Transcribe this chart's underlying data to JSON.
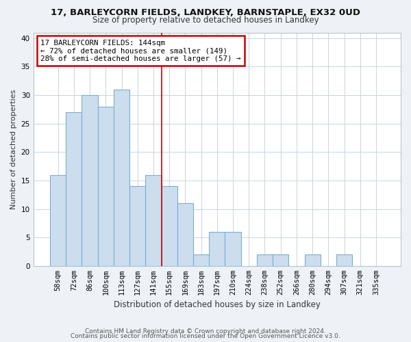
{
  "title1": "17, BARLEYCORN FIELDS, LANDKEY, BARNSTAPLE, EX32 0UD",
  "title2": "Size of property relative to detached houses in Landkey",
  "xlabel": "Distribution of detached houses by size in Landkey",
  "ylabel": "Number of detached properties",
  "categories": [
    "58sqm",
    "72sqm",
    "86sqm",
    "100sqm",
    "113sqm",
    "127sqm",
    "141sqm",
    "155sqm",
    "169sqm",
    "183sqm",
    "197sqm",
    "210sqm",
    "224sqm",
    "238sqm",
    "252sqm",
    "266sqm",
    "280sqm",
    "294sqm",
    "307sqm",
    "321sqm",
    "335sqm"
  ],
  "values": [
    16,
    27,
    30,
    28,
    31,
    14,
    16,
    14,
    11,
    2,
    6,
    6,
    0,
    2,
    2,
    0,
    2,
    0,
    2,
    0,
    0
  ],
  "bar_color": "#ccdded",
  "bar_edge_color": "#7aafce",
  "red_line_x": 6.5,
  "annotation_line1": "17 BARLEYCORN FIELDS: 144sqm",
  "annotation_line2": "← 72% of detached houses are smaller (149)",
  "annotation_line3": "28% of semi-detached houses are larger (57) →",
  "annotation_box_color": "#ffffff",
  "annotation_box_edge": "#cc0000",
  "red_line_color": "#cc0000",
  "ylim": [
    0,
    41
  ],
  "yticks": [
    0,
    5,
    10,
    15,
    20,
    25,
    30,
    35,
    40
  ],
  "footnote1": "Contains HM Land Registry data © Crown copyright and database right 2024.",
  "footnote2": "Contains public sector information licensed under the Open Government Licence v3.0.",
  "bg_color": "#eef2f7",
  "plot_bg_color": "#ffffff",
  "grid_color": "#c8d4e0",
  "title1_fontsize": 9.5,
  "title2_fontsize": 8.5,
  "xlabel_fontsize": 8.5,
  "ylabel_fontsize": 8,
  "tick_fontsize": 7.5,
  "footnote_fontsize": 6.5,
  "annotation_fontsize": 7.8
}
